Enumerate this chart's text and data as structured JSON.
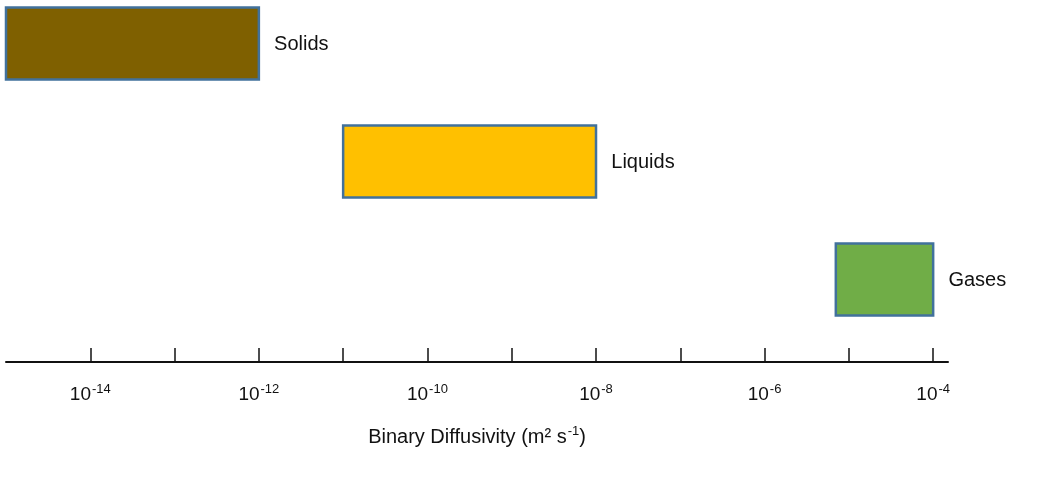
{
  "chart_data": {
    "type": "bar",
    "orientation": "horizontal",
    "xlabel": "Binary Diffusivity (m² s$^{-1}$)",
    "log": "x",
    "categories": [
      "Solids",
      "Liquids",
      "Gases"
    ],
    "base": [
      1e-15,
      1e-11,
      7e-06
    ],
    "values": [
      9.99e-13,
      9.99e-09,
      9.3e-05
    ],
    "colors": [
      "#7f6000",
      "#ffc000",
      "#70ad47"
    ],
    "xlim": [
      1e-15,
      0.00015
    ],
    "xticks": [
      {
        "value": 1e-14,
        "label": "10$^{-14}$"
      },
      {
        "value": 1e-13,
        "label": null
      },
      {
        "value": 1e-12,
        "label": "10$^{-12}$"
      },
      {
        "value": 1e-11,
        "label": null
      },
      {
        "value": 1e-10,
        "label": "10$^{-10}$"
      },
      {
        "value": 1e-09,
        "label": null
      },
      {
        "value": 1e-08,
        "label": "10$^{-8}$"
      },
      {
        "value": 1e-07,
        "label": null
      },
      {
        "value": 1e-06,
        "label": "10$^{-6}$"
      },
      {
        "value": 1e-05,
        "label": null
      },
      {
        "value": 0.0001,
        "label": "10$^{-4}$"
      }
    ],
    "tick_labels": "x",
    "grid": false
  }
}
